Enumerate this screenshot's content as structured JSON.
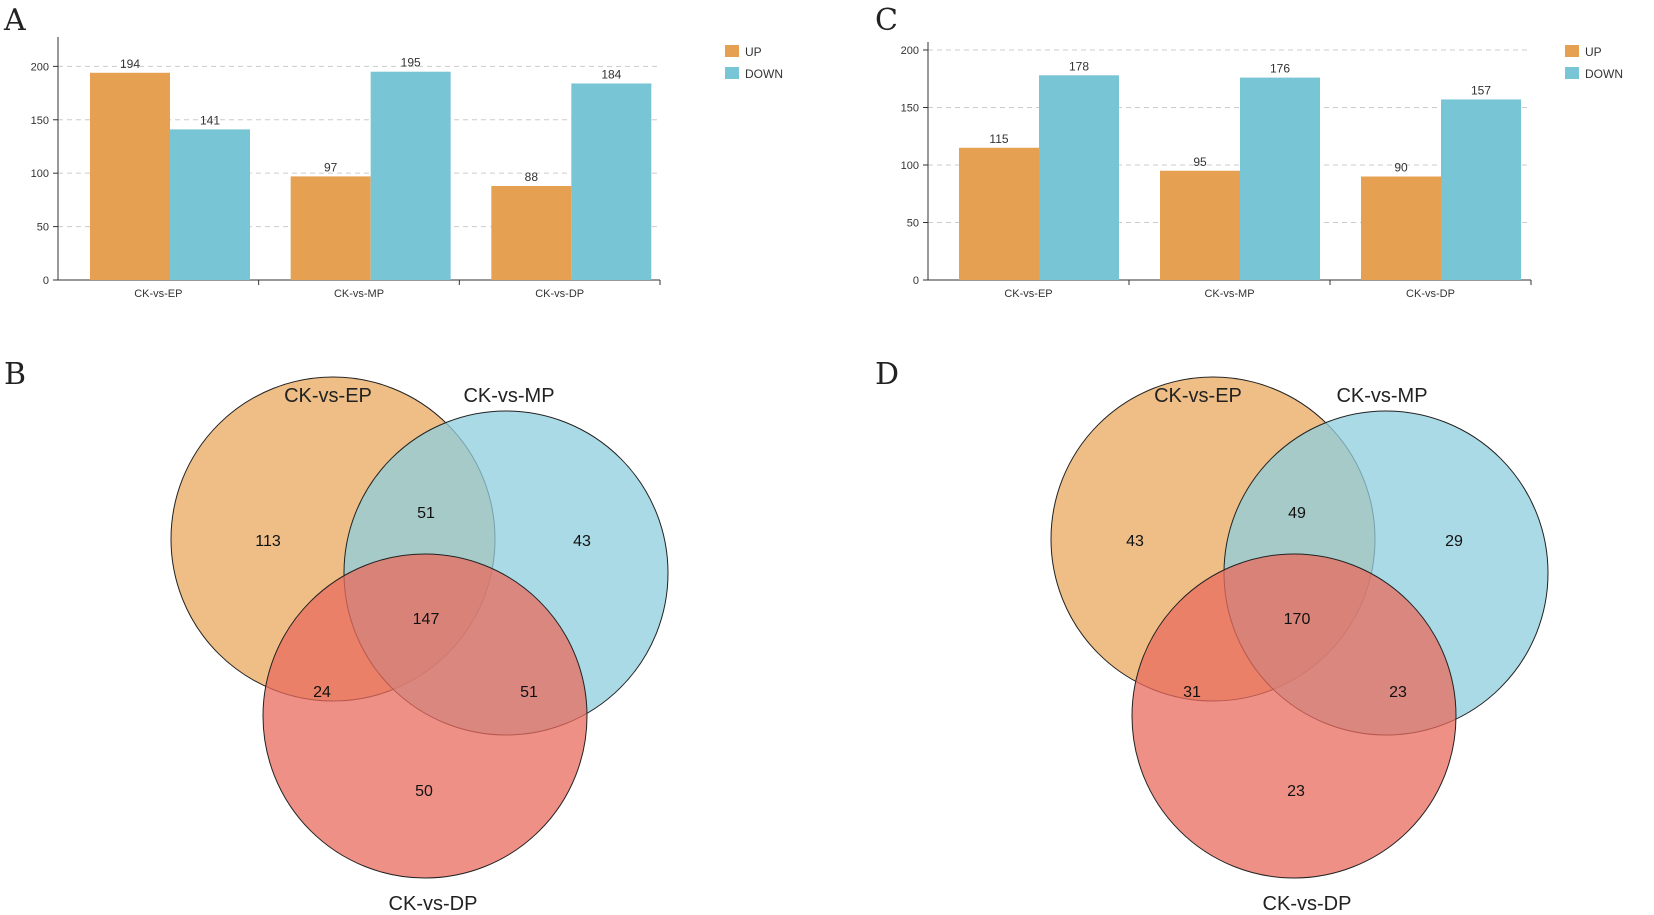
{
  "panels": {
    "A": "A",
    "B": "B",
    "C": "C",
    "D": "D"
  },
  "colors": {
    "up": "#E6A052",
    "down": "#78C5D6",
    "ep": "#E8A85E",
    "mp": "#8ECDDD",
    "dp": "#E96B5E",
    "grid": "#cccccc",
    "axis": "#333333"
  },
  "legend": {
    "up": "UP",
    "down": "DOWN"
  },
  "chart_data": [
    {
      "panel": "A",
      "type": "bar",
      "categories": [
        "CK-vs-EP",
        "CK-vs-MP",
        "CK-vs-DP"
      ],
      "series": [
        {
          "name": "UP",
          "values": [
            194,
            97,
            88
          ]
        },
        {
          "name": "DOWN",
          "values": [
            141,
            195,
            184
          ]
        }
      ],
      "yticks": [
        0,
        50,
        100,
        150,
        200
      ],
      "ylim": [
        0,
        220
      ],
      "legend_position": "top-right",
      "grid": true
    },
    {
      "panel": "C",
      "type": "bar",
      "categories": [
        "CK-vs-EP",
        "CK-vs-MP",
        "CK-vs-DP"
      ],
      "series": [
        {
          "name": "UP",
          "values": [
            115,
            95,
            90
          ]
        },
        {
          "name": "DOWN",
          "values": [
            178,
            176,
            157
          ]
        }
      ],
      "yticks": [
        0,
        50,
        100,
        150,
        200
      ],
      "ylim": [
        0,
        200
      ],
      "legend_position": "top-right",
      "grid": true
    },
    {
      "panel": "B",
      "type": "venn",
      "sets": [
        "CK-vs-EP",
        "CK-vs-MP",
        "CK-vs-DP"
      ],
      "regions": {
        "EP_only": 113,
        "MP_only": 43,
        "DP_only": 50,
        "EP_MP": 51,
        "EP_DP": 24,
        "MP_DP": 51,
        "EP_MP_DP": 147
      }
    },
    {
      "panel": "D",
      "type": "venn",
      "sets": [
        "CK-vs-EP",
        "CK-vs-MP",
        "CK-vs-DP"
      ],
      "regions": {
        "EP_only": 43,
        "MP_only": 29,
        "DP_only": 23,
        "EP_MP": 49,
        "EP_DP": 31,
        "MP_DP": 23,
        "EP_MP_DP": 170
      }
    }
  ]
}
